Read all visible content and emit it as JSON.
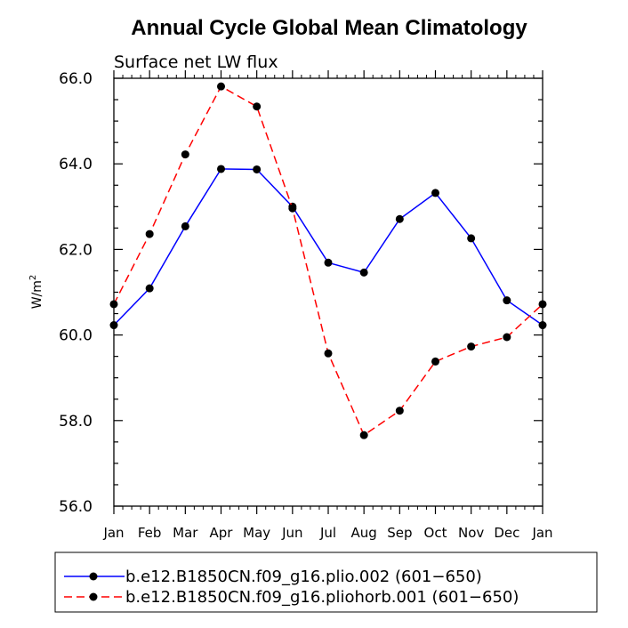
{
  "chart_data": {
    "type": "line",
    "title": "Annual Cycle Global Mean Climatology",
    "subtitle": "Surface net LW flux",
    "xlabel": "",
    "ylabel": "W/m",
    "ylabel_sup": "2",
    "categories": [
      "Jan",
      "Feb",
      "Mar",
      "Apr",
      "May",
      "Jun",
      "Jul",
      "Aug",
      "Sep",
      "Oct",
      "Nov",
      "Dec",
      "Jan"
    ],
    "ylim": [
      56.0,
      66.0
    ],
    "yticks": [
      "56.0",
      "58.0",
      "60.0",
      "62.0",
      "64.0",
      "66.0"
    ],
    "grid": false,
    "legend_position": "bottom",
    "series": [
      {
        "name": "b.e12.B1850CN.f09_g16.plio.002 (601−650)",
        "color": "#0000ff",
        "dash": "solid",
        "values": [
          60.23,
          61.09,
          62.54,
          63.88,
          63.87,
          63.0,
          61.69,
          61.46,
          62.71,
          63.32,
          62.26,
          60.81,
          60.23
        ]
      },
      {
        "name": "b.e12.B1850CN.f09_g16.pliohorb.001 (601−650)",
        "color": "#ff0000",
        "dash": "dashed",
        "values": [
          60.72,
          62.36,
          64.22,
          65.81,
          65.34,
          62.96,
          59.57,
          57.66,
          58.23,
          59.38,
          59.73,
          59.95,
          60.72
        ]
      }
    ]
  }
}
